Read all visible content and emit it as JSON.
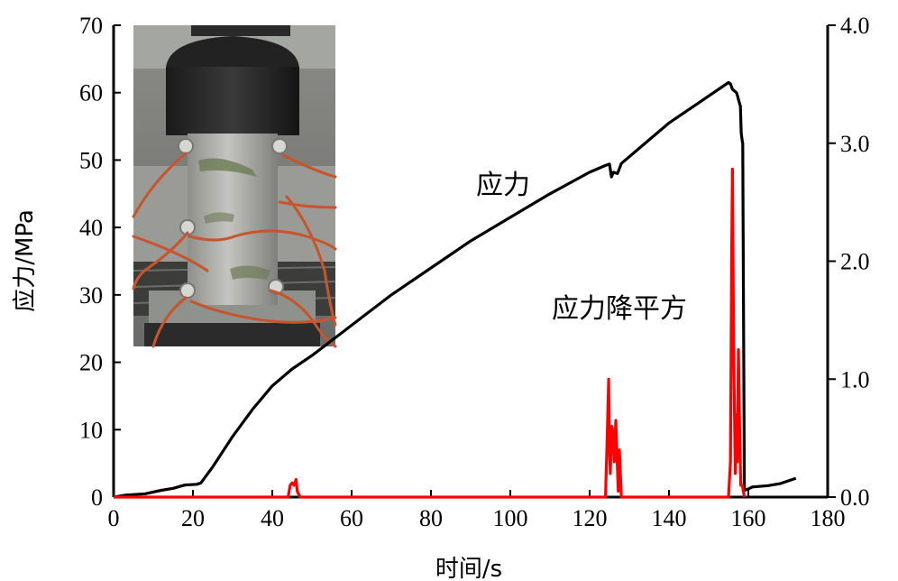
{
  "chart_data": {
    "type": "line",
    "xlabel": "时间/s",
    "ylabel": "应力/MPa",
    "xlim": [
      0,
      180
    ],
    "ylim_left": [
      0,
      70
    ],
    "ylim_right": [
      0,
      4.0
    ],
    "x_ticks": [
      "0",
      "20",
      "40",
      "60",
      "80",
      "100",
      "120",
      "140",
      "160",
      "180"
    ],
    "y_left_ticks": [
      "0",
      "10",
      "20",
      "30",
      "40",
      "50",
      "60",
      "70"
    ],
    "y_right_ticks": [
      "0.0",
      "1.0",
      "2.0",
      "3.0",
      "4.0"
    ],
    "annotations": [
      "应力",
      "应力降平方"
    ],
    "grid": false,
    "series": [
      {
        "name": "应力",
        "axis": "left",
        "color": "#000000",
        "x": [
          0,
          3,
          8,
          12,
          15,
          18,
          21,
          22,
          25,
          30,
          35,
          40,
          45,
          50,
          60,
          70,
          80,
          90,
          100,
          110,
          120,
          124,
          125,
          125.5,
          126,
          127,
          128,
          130,
          135,
          140,
          145,
          150,
          155,
          155.5,
          156,
          157,
          157.3,
          157.5,
          158,
          158.2,
          158.5,
          158.6,
          159,
          160,
          161,
          165,
          168,
          170,
          172
        ],
        "y": [
          0,
          0.3,
          0.5,
          1.0,
          1.3,
          1.8,
          1.9,
          2.1,
          4.5,
          9,
          13,
          16.5,
          19,
          21,
          25.5,
          30,
          34,
          38,
          41.5,
          45,
          48.2,
          49.2,
          49.4,
          47.5,
          48.2,
          48.0,
          49.5,
          50.5,
          53,
          55.5,
          57.5,
          59.5,
          61.5,
          61.3,
          60.5,
          60.0,
          59.5,
          59.0,
          58.0,
          54,
          52.7,
          52.5,
          1.0,
          1.2,
          1.5,
          1.7,
          2.0,
          2.4,
          2.8
        ]
      },
      {
        "name": "应力降平方",
        "axis": "right",
        "color": "#ff0000",
        "x": [
          0,
          44,
          44.5,
          45,
          45.5,
          46,
          46.3,
          47,
          124,
          124.5,
          124.8,
          125,
          125.2,
          125.6,
          125.9,
          126.2,
          126.6,
          127,
          127.2,
          127.5,
          128,
          155,
          155.5,
          155.8,
          156,
          156.3,
          156.7,
          157,
          157.2,
          157.5,
          157.8,
          158.1,
          158.5,
          159
        ],
        "y": [
          0,
          0,
          0.1,
          0.12,
          0.1,
          0.15,
          0.05,
          0,
          0,
          0.6,
          1.0,
          0.4,
          0.2,
          0.6,
          0.55,
          0.3,
          0.65,
          0.25,
          0.05,
          0.4,
          0,
          0,
          0.3,
          2.05,
          2.78,
          1.3,
          0.2,
          0.7,
          0.3,
          1.25,
          0.6,
          0.1,
          0.1,
          0
        ]
      }
    ]
  },
  "inset_photo": {
    "description_icon": "specimen-photo"
  }
}
